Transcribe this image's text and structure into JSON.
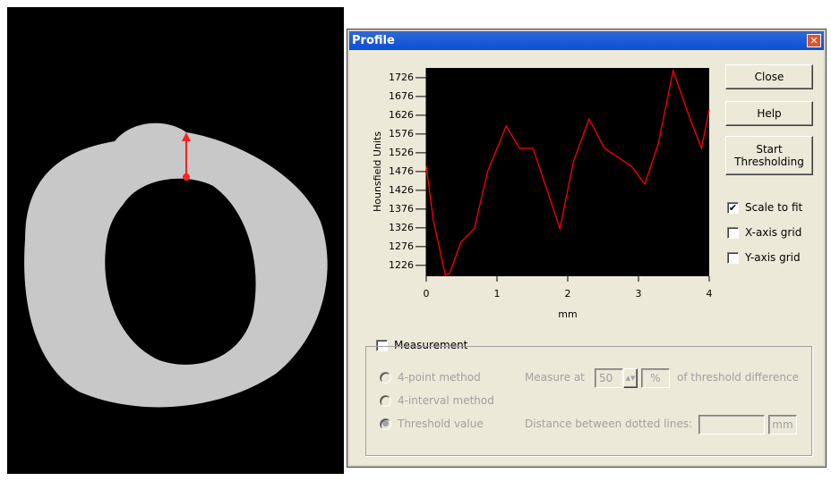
{
  "window": {
    "title": "Profile"
  },
  "chart_data": {
    "type": "line",
    "y_label": "Hounsfield Units",
    "x_label": "mm",
    "x": [
      0,
      0.1,
      0.27,
      0.33,
      0.49,
      0.68,
      0.87,
      1.13,
      1.32,
      1.51,
      1.89,
      2.08,
      2.3,
      2.52,
      2.9,
      3.09,
      3.28,
      3.49,
      3.72,
      3.89,
      4.0
    ],
    "values": [
      1490,
      1347,
      1200,
      1205,
      1288,
      1324,
      1478,
      1597,
      1538,
      1538,
      1324,
      1502,
      1616,
      1538,
      1490,
      1443,
      1550,
      1745,
      1621,
      1538,
      1640
    ],
    "color": "#ff0000",
    "background": "#000000",
    "xlim": [
      0,
      4
    ],
    "xticks": [
      0,
      1,
      2,
      3,
      4
    ],
    "ylim": [
      1197,
      1752
    ],
    "yticks": [
      1226,
      1276,
      1326,
      1376,
      1426,
      1476,
      1526,
      1576,
      1626,
      1676,
      1726
    ]
  },
  "buttons": [
    "Close",
    "Help",
    "Start Thresholding"
  ],
  "options": [
    {
      "label": "Scale to fit",
      "checked": true
    },
    {
      "label": "X-axis grid",
      "checked": false
    },
    {
      "label": "Y-axis grid",
      "checked": false
    }
  ],
  "measurement": {
    "label": "Measurement",
    "checked": false,
    "methods": [
      {
        "label": "4-point method",
        "selected": false
      },
      {
        "label": "4-interval method",
        "selected": false
      },
      {
        "label": "Threshold value",
        "selected": true
      }
    ],
    "measure_at_label": "Measure at",
    "measure_at_value": "50",
    "measure_at_unit": "%",
    "measure_at_suffix": "of threshold difference",
    "distance_label": "Distance between dotted lines:",
    "distance_unit": "mm"
  }
}
